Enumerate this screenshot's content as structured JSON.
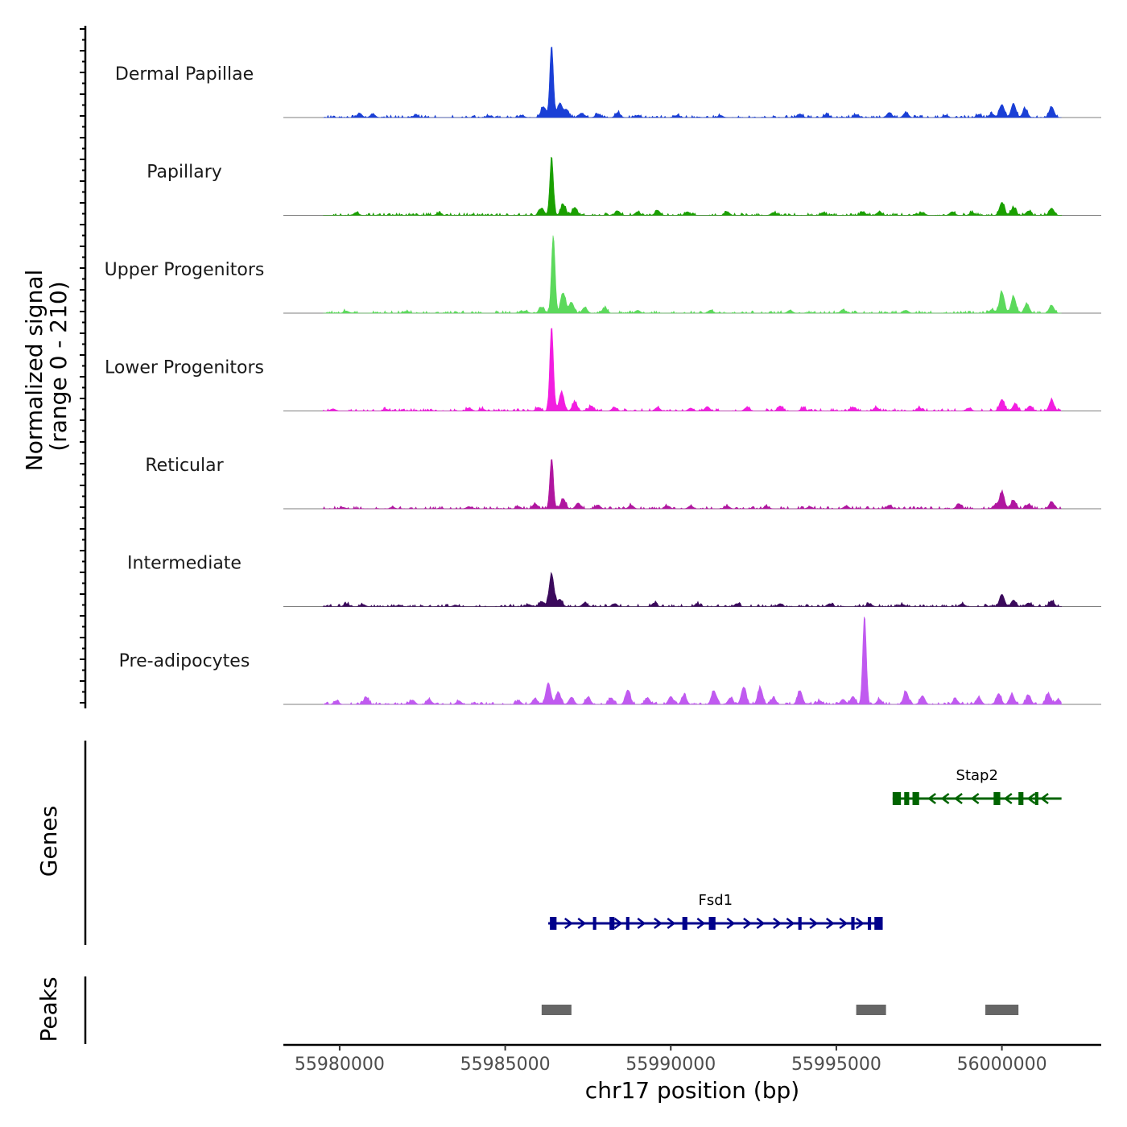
{
  "chart_data": {
    "type": "area",
    "title": "",
    "ylabel": "Normalized signal",
    "ylabel_range": "(range 0 - 210)",
    "ylim": [
      0,
      210
    ],
    "xlabel": "chr17 position (bp)",
    "xlim": [
      55978300,
      56003000
    ],
    "x_ticks": [
      55980000,
      55985000,
      55990000,
      55995000,
      56000000
    ],
    "x_tick_labels": [
      "55980000",
      "55985000",
      "55990000",
      "55995000",
      "56000000"
    ],
    "signal_start": 55979500,
    "signal_end": 56001800,
    "series": [
      {
        "name": "Dermal Papillae",
        "color": "#1a3fd6",
        "peaks": [
          [
            55980600,
            12
          ],
          [
            55981000,
            10
          ],
          [
            55982300,
            6
          ],
          [
            55984500,
            5
          ],
          [
            55985500,
            6
          ],
          [
            55986150,
            30
          ],
          [
            55986400,
            200
          ],
          [
            55986650,
            40
          ],
          [
            55986850,
            22
          ],
          [
            55987300,
            12
          ],
          [
            55987800,
            10
          ],
          [
            55988400,
            14
          ],
          [
            55989000,
            6
          ],
          [
            55990200,
            6
          ],
          [
            55991500,
            6
          ],
          [
            55993900,
            10
          ],
          [
            55994700,
            8
          ],
          [
            55995600,
            8
          ],
          [
            55996600,
            14
          ],
          [
            55997100,
            14
          ],
          [
            55998300,
            6
          ],
          [
            55999300,
            8
          ],
          [
            55999700,
            10
          ],
          [
            56000000,
            36
          ],
          [
            56000350,
            38
          ],
          [
            56000700,
            24
          ],
          [
            56001500,
            30
          ]
        ]
      },
      {
        "name": "Papillary",
        "color": "#1aa000",
        "peaks": [
          [
            55980500,
            8
          ],
          [
            55983000,
            6
          ],
          [
            55986100,
            20
          ],
          [
            55986400,
            160
          ],
          [
            55986750,
            30
          ],
          [
            55987100,
            22
          ],
          [
            55988400,
            12
          ],
          [
            55989000,
            10
          ],
          [
            55989600,
            14
          ],
          [
            55990500,
            10
          ],
          [
            55991700,
            10
          ],
          [
            55993100,
            8
          ],
          [
            55994600,
            8
          ],
          [
            55995800,
            10
          ],
          [
            55996300,
            10
          ],
          [
            55997600,
            8
          ],
          [
            55998500,
            10
          ],
          [
            55999100,
            8
          ],
          [
            56000000,
            36
          ],
          [
            56000350,
            22
          ],
          [
            56000800,
            12
          ],
          [
            56001500,
            20
          ]
        ]
      },
      {
        "name": "Upper Progenitors",
        "color": "#5cd95c",
        "peaks": [
          [
            55980200,
            6
          ],
          [
            55982000,
            5
          ],
          [
            55985600,
            6
          ],
          [
            55986100,
            16
          ],
          [
            55986450,
            215
          ],
          [
            55986750,
            56
          ],
          [
            55987000,
            30
          ],
          [
            55987400,
            16
          ],
          [
            55988000,
            14
          ],
          [
            55989000,
            8
          ],
          [
            55991200,
            8
          ],
          [
            55993600,
            8
          ],
          [
            55995200,
            10
          ],
          [
            55997100,
            8
          ],
          [
            55999700,
            10
          ],
          [
            56000000,
            58
          ],
          [
            56000350,
            46
          ],
          [
            56000750,
            26
          ],
          [
            56001500,
            22
          ]
        ]
      },
      {
        "name": "Lower Progenitors",
        "color": "#f21de0",
        "peaks": [
          [
            55979800,
            6
          ],
          [
            55981400,
            5
          ],
          [
            55983900,
            8
          ],
          [
            55984300,
            6
          ],
          [
            55986000,
            10
          ],
          [
            55986400,
            235
          ],
          [
            55986700,
            52
          ],
          [
            55987100,
            24
          ],
          [
            55987600,
            14
          ],
          [
            55988300,
            10
          ],
          [
            55989600,
            10
          ],
          [
            55990600,
            8
          ],
          [
            55991100,
            12
          ],
          [
            55992300,
            10
          ],
          [
            55993300,
            14
          ],
          [
            55994000,
            8
          ],
          [
            55995500,
            10
          ],
          [
            55996200,
            10
          ],
          [
            55997500,
            8
          ],
          [
            55999000,
            8
          ],
          [
            56000000,
            32
          ],
          [
            56000400,
            20
          ],
          [
            56000850,
            14
          ],
          [
            56001500,
            30
          ]
        ]
      },
      {
        "name": "Reticular",
        "color": "#b0169f",
        "peaks": [
          [
            55980100,
            4
          ],
          [
            55981600,
            4
          ],
          [
            55983900,
            6
          ],
          [
            55985400,
            6
          ],
          [
            55985900,
            14
          ],
          [
            55986400,
            140
          ],
          [
            55986750,
            28
          ],
          [
            55987200,
            16
          ],
          [
            55987800,
            10
          ],
          [
            55988800,
            10
          ],
          [
            55989900,
            8
          ],
          [
            55990600,
            8
          ],
          [
            55991700,
            8
          ],
          [
            55992900,
            6
          ],
          [
            55994200,
            6
          ],
          [
            55995300,
            8
          ],
          [
            55996600,
            10
          ],
          [
            55998700,
            14
          ],
          [
            55999800,
            10
          ],
          [
            56000000,
            46
          ],
          [
            56000350,
            24
          ],
          [
            56000800,
            12
          ],
          [
            56001500,
            20
          ]
        ]
      },
      {
        "name": "Intermediate",
        "color": "#3b0a5c",
        "peaks": [
          [
            55980200,
            8
          ],
          [
            55980700,
            6
          ],
          [
            55981800,
            4
          ],
          [
            55983500,
            4
          ],
          [
            55985700,
            6
          ],
          [
            55986100,
            14
          ],
          [
            55986400,
            90
          ],
          [
            55986650,
            20
          ],
          [
            55987400,
            10
          ],
          [
            55988300,
            8
          ],
          [
            55989500,
            10
          ],
          [
            55990800,
            8
          ],
          [
            55992000,
            8
          ],
          [
            55993300,
            8
          ],
          [
            55994800,
            8
          ],
          [
            55996000,
            8
          ],
          [
            55997000,
            6
          ],
          [
            55998800,
            8
          ],
          [
            56000000,
            34
          ],
          [
            56000350,
            18
          ],
          [
            56000800,
            10
          ],
          [
            56001500,
            16
          ]
        ]
      },
      {
        "name": "Pre-adipocytes",
        "color": "#c05af0",
        "peaks": [
          [
            55979900,
            10
          ],
          [
            55980800,
            20
          ],
          [
            55982200,
            12
          ],
          [
            55982700,
            14
          ],
          [
            55983600,
            10
          ],
          [
            55985400,
            10
          ],
          [
            55985900,
            16
          ],
          [
            55986300,
            60
          ],
          [
            55986600,
            34
          ],
          [
            55987000,
            20
          ],
          [
            55987500,
            20
          ],
          [
            55988200,
            18
          ],
          [
            55988700,
            40
          ],
          [
            55989300,
            18
          ],
          [
            55990000,
            22
          ],
          [
            55990400,
            26
          ],
          [
            55991300,
            38
          ],
          [
            55991800,
            18
          ],
          [
            55992200,
            48
          ],
          [
            55992700,
            46
          ],
          [
            55993100,
            18
          ],
          [
            55993900,
            38
          ],
          [
            55994500,
            10
          ],
          [
            55995200,
            14
          ],
          [
            55995500,
            22
          ],
          [
            55995850,
            245
          ],
          [
            55996300,
            14
          ],
          [
            55997100,
            36
          ],
          [
            55997600,
            24
          ],
          [
            55998600,
            14
          ],
          [
            55999300,
            20
          ],
          [
            55999900,
            30
          ],
          [
            56000300,
            28
          ],
          [
            56000800,
            26
          ],
          [
            56001400,
            30
          ],
          [
            56001700,
            14
          ]
        ]
      }
    ],
    "genes": [
      {
        "name": "Stap2",
        "color": "#006400",
        "strand": "-",
        "start": 55996700,
        "end": 56001800,
        "exons": [
          [
            55996700,
            55996950
          ],
          [
            55997050,
            55997200
          ],
          [
            55997300,
            55997500
          ],
          [
            55999750,
            55999950
          ],
          [
            56000500,
            56000650
          ],
          [
            56001000,
            56001100
          ]
        ],
        "introns_marks": [
          55997900,
          55998300,
          55998700,
          55999200,
          56000200,
          56000900,
          56001300
        ]
      },
      {
        "name": "Fsd1",
        "color": "#00008b",
        "strand": "+",
        "start": 55986300,
        "end": 55996400,
        "exons": [
          [
            55986350,
            55986550
          ],
          [
            55987650,
            55987750
          ],
          [
            55988150,
            55988300
          ],
          [
            55988650,
            55988750
          ],
          [
            55990350,
            55990500
          ],
          [
            55991150,
            55991350
          ],
          [
            55993850,
            55993950
          ],
          [
            55995450,
            55995550
          ],
          [
            55995950,
            55996050
          ],
          [
            55996150,
            55996400
          ]
        ],
        "introns_marks": [
          55986900,
          55987300,
          55988400,
          55989100,
          55989600,
          55990000,
          55990900,
          55991800,
          55992300,
          55992700,
          55993200,
          55993600,
          55994300,
          55994800,
          55995200,
          55995700
        ]
      }
    ],
    "peaks_track": {
      "label": "Peaks",
      "color": "#666666",
      "regions": [
        [
          55986100,
          55987000
        ],
        [
          55995600,
          55996500
        ],
        [
          55999500,
          56000500
        ]
      ]
    },
    "track_labels": {
      "genes": "Genes",
      "peaks": "Peaks"
    }
  }
}
